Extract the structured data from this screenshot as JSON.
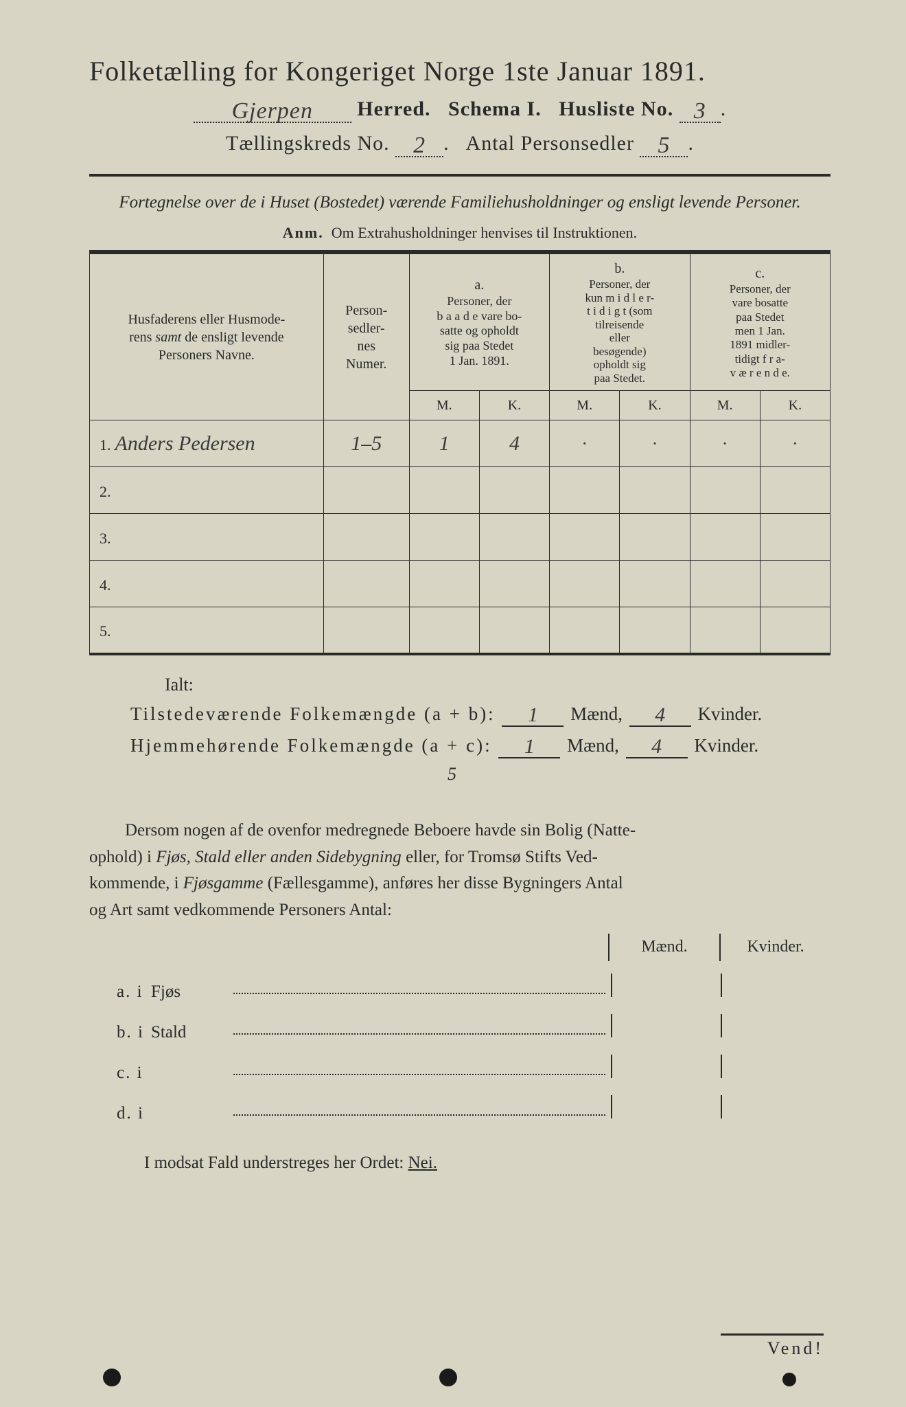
{
  "colors": {
    "paper": "#d8d5c4",
    "ink": "#2a2a2a",
    "handwriting": "#3a3a3a"
  },
  "header": {
    "title": "Folketælling for Kongeriget Norge 1ste Januar 1891.",
    "herred_hw": "Gjerpen",
    "herred_label": "Herred.",
    "schema_label": "Schema I.",
    "husliste_label": "Husliste No.",
    "husliste_no_hw": "3",
    "kreds_label": "Tællingskreds No.",
    "kreds_no_hw": "2",
    "antal_label": "Antal Personsedler",
    "antal_hw": "5"
  },
  "subtitle": "Fortegnelse over de i Huset (Bostedet) værende Familiehusholdninger og ensligt levende Personer.",
  "anm_label": "Anm.",
  "anm_text": "Om Extrahusholdninger henvises til Instruktionen.",
  "table": {
    "col1": "Husfaderens eller Husmoderens samt de ensligt levende Personers Navne.",
    "col2": "Person-sedler-nes Numer.",
    "a_label": "a.",
    "a_text": "Personer, der baade vare bosatte og opholdt sig paa Stedet 1 Jan. 1891.",
    "b_label": "b.",
    "b_text": "Personer, der kun midlertidigt (som tilreisende eller besøgende) opholdt sig paa Stedet.",
    "c_label": "c.",
    "c_text": "Personer, der vare bosatte paa Stedet men 1 Jan. 1891 midlertidigt fraværende.",
    "M": "M.",
    "K": "K.",
    "rows": [
      {
        "num": "1.",
        "name_hw": "Anders Pedersen",
        "numer_hw": "1–5",
        "aM": "1",
        "aK": "4",
        "bM": "·",
        "bK": "·",
        "cM": "·",
        "cK": "·"
      },
      {
        "num": "2.",
        "name_hw": "",
        "numer_hw": "",
        "aM": "",
        "aK": "",
        "bM": "",
        "bK": "",
        "cM": "",
        "cK": ""
      },
      {
        "num": "3.",
        "name_hw": "",
        "numer_hw": "",
        "aM": "",
        "aK": "",
        "bM": "",
        "bK": "",
        "cM": "",
        "cK": ""
      },
      {
        "num": "4.",
        "name_hw": "",
        "numer_hw": "",
        "aM": "",
        "aK": "",
        "bM": "",
        "bK": "",
        "cM": "",
        "cK": ""
      },
      {
        "num": "5.",
        "name_hw": "",
        "numer_hw": "",
        "aM": "",
        "aK": "",
        "bM": "",
        "bK": "",
        "cM": "",
        "cK": ""
      }
    ]
  },
  "totals": {
    "ialt": "Ialt:",
    "tilstede_label": "Tilstedeværende Folkemængde (a + b):",
    "hjemme_label": "Hjemmehørende Folkemængde (a + c):",
    "maend": "Mænd,",
    "kvinder": "Kvinder.",
    "tilstede_m_hw": "1",
    "tilstede_k_hw": "4",
    "hjemme_m_hw": "1",
    "hjemme_k_hw": "4",
    "sub_hw": "5"
  },
  "paragraph": "Dersom nogen af de ovenfor medregnede Beboere havde sin Bolig (Natteophold) i Fjøs, Stald eller anden Sidebygning eller, for Tromsø Stifts Vedkommende, i Fjøsgamme (Fællesgamme), anføres her disse Bygningers Antal og Art samt vedkommende Personers Antal:",
  "mk": {
    "maend": "Mænd.",
    "kvinder": "Kvinder."
  },
  "abcd": [
    {
      "lead": "a.  i",
      "word": "Fjøs"
    },
    {
      "lead": "b.  i",
      "word": "Stald"
    },
    {
      "lead": "c.  i",
      "word": ""
    },
    {
      "lead": "d.  i",
      "word": ""
    }
  ],
  "modsat": "I modsat Fald understreges her Ordet:",
  "nei": "Nei.",
  "vend": "Vend!"
}
